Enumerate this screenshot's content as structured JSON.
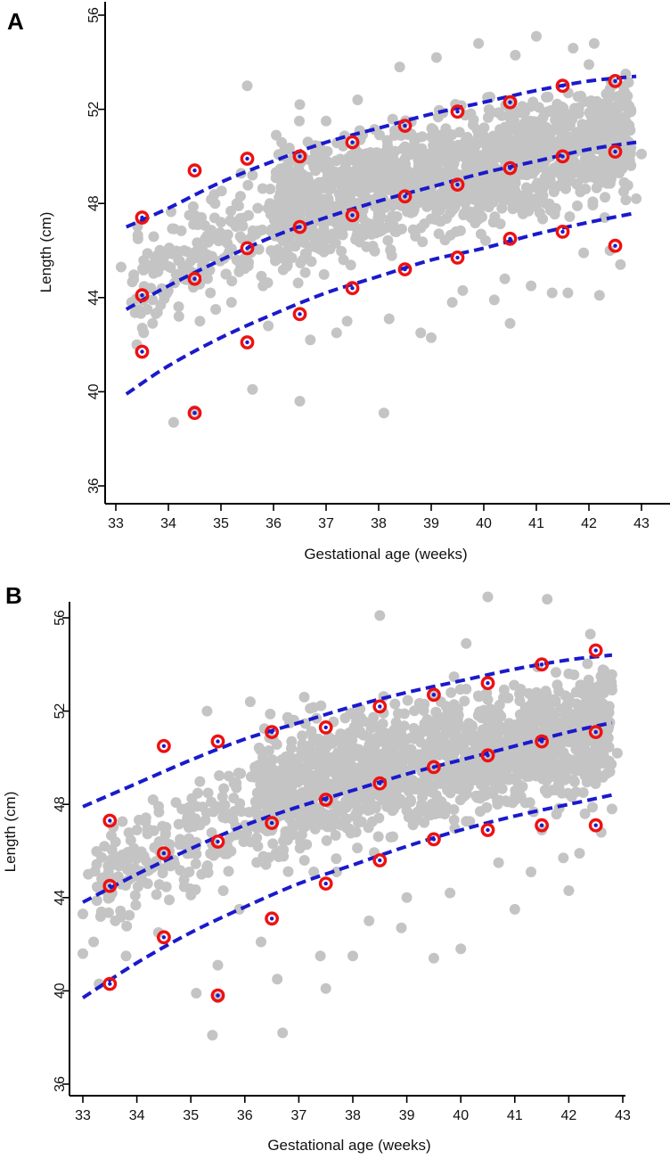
{
  "colors": {
    "scatter": "#c4c4c4",
    "curve": "#1a1acc",
    "marker": "#ee1111",
    "axis": "#000000"
  },
  "chart_data": [
    {
      "type": "scatter",
      "panel_label": "A",
      "xlabel": "Gestational age (weeks)",
      "ylabel": "Length (cm)",
      "xlim": [
        32.8,
        43.2
      ],
      "ylim": [
        35.5,
        57.5
      ],
      "xticks": [
        33,
        34,
        35,
        36,
        37,
        38,
        39,
        40,
        41,
        42,
        43
      ],
      "yticks": [
        36,
        40,
        44,
        48,
        52,
        56
      ],
      "scatter_description": "grey individual observations",
      "scatter_points": [
        [
          33.1,
          45.3
        ],
        [
          33.3,
          43.8
        ],
        [
          33.6,
          43.5
        ],
        [
          33.7,
          42.9
        ],
        [
          33.4,
          42.0
        ],
        [
          33.8,
          45.1
        ],
        [
          33.9,
          44.2
        ],
        [
          34.1,
          38.7
        ],
        [
          34.2,
          43.2
        ],
        [
          34.3,
          46.0
        ],
        [
          34.5,
          45.8
        ],
        [
          34.6,
          43.0
        ],
        [
          34.7,
          46.5
        ],
        [
          34.4,
          47.5
        ],
        [
          34.8,
          44.2
        ],
        [
          34.9,
          43.5
        ],
        [
          34.5,
          39.2
        ],
        [
          34.3,
          44.8
        ],
        [
          35.0,
          47.2
        ],
        [
          35.1,
          45.0
        ],
        [
          35.2,
          43.8
        ],
        [
          35.3,
          48.0
        ],
        [
          35.5,
          53.0
        ],
        [
          35.6,
          40.1
        ],
        [
          35.4,
          46.5
        ],
        [
          35.7,
          47.8
        ],
        [
          35.8,
          44.5
        ],
        [
          35.9,
          42.8
        ],
        [
          35.6,
          49.2
        ],
        [
          35.3,
          45.6
        ],
        [
          36.0,
          47.5
        ],
        [
          36.3,
          50.3
        ],
        [
          36.5,
          39.6
        ],
        [
          36.5,
          52.2
        ],
        [
          36.7,
          42.2
        ],
        [
          36.9,
          46.1
        ],
        [
          37.0,
          51.5
        ],
        [
          37.2,
          42.5
        ],
        [
          37.4,
          43.0
        ],
        [
          37.6,
          52.4
        ],
        [
          37.8,
          49.6
        ],
        [
          38.1,
          39.1
        ],
        [
          38.2,
          43.1
        ],
        [
          38.4,
          53.8
        ],
        [
          38.8,
          42.5
        ],
        [
          39.0,
          42.3
        ],
        [
          39.1,
          54.2
        ],
        [
          39.4,
          43.8
        ],
        [
          39.6,
          44.3
        ],
        [
          39.9,
          54.8
        ],
        [
          40.2,
          43.9
        ],
        [
          40.4,
          44.8
        ],
        [
          40.5,
          42.9
        ],
        [
          40.6,
          54.3
        ],
        [
          40.9,
          44.5
        ],
        [
          41.0,
          55.1
        ],
        [
          41.3,
          44.2
        ],
        [
          41.6,
          44.2
        ],
        [
          41.7,
          54.6
        ],
        [
          41.9,
          45.9
        ],
        [
          42.1,
          54.8
        ],
        [
          42.2,
          44.1
        ],
        [
          42.4,
          46.0
        ],
        [
          42.6,
          45.4
        ],
        [
          42.8,
          51.9
        ],
        [
          42.9,
          48.2
        ],
        [
          43.0,
          50.1
        ],
        [
          42.7,
          53.5
        ],
        [
          42.3,
          47.4
        ],
        [
          42.0,
          53.9
        ]
      ],
      "scatter_clusters": [
        {
          "x": [
            36.0,
            42.8
          ],
          "lo": [
            44.0,
            47.5
          ],
          "hi": [
            51.5,
            54.0
          ],
          "n": 1500,
          "seed": 11
        },
        {
          "x": [
            33.3,
            36.2
          ],
          "lo": [
            41.5,
            44.0
          ],
          "hi": [
            48.0,
            51.0
          ],
          "n": 160,
          "seed": 23
        }
      ],
      "curves": [
        {
          "name": "upper",
          "x": [
            33.2,
            34.0,
            35.0,
            36.0,
            37.0,
            38.0,
            39.0,
            40.0,
            41.0,
            42.0,
            42.9
          ],
          "y": [
            47.0,
            47.8,
            48.9,
            49.8,
            50.6,
            51.2,
            51.8,
            52.3,
            52.8,
            53.2,
            53.4
          ]
        },
        {
          "name": "middle",
          "x": [
            33.2,
            34.0,
            35.0,
            36.0,
            37.0,
            38.0,
            39.0,
            40.0,
            41.0,
            42.0,
            42.9
          ],
          "y": [
            43.5,
            44.5,
            45.6,
            46.6,
            47.4,
            48.1,
            48.7,
            49.3,
            49.8,
            50.3,
            50.6
          ]
        },
        {
          "name": "lower",
          "x": [
            33.2,
            34.0,
            35.0,
            36.0,
            37.0,
            38.0,
            39.0,
            40.0,
            41.0,
            42.0,
            42.9
          ],
          "y": [
            39.9,
            41.1,
            42.3,
            43.3,
            44.2,
            44.9,
            45.6,
            46.1,
            46.7,
            47.2,
            47.6
          ]
        }
      ],
      "markers": [
        {
          "x": 33.5,
          "y": 47.4
        },
        {
          "x": 33.5,
          "y": 44.1
        },
        {
          "x": 33.5,
          "y": 41.7
        },
        {
          "x": 34.5,
          "y": 49.4
        },
        {
          "x": 34.5,
          "y": 44.8
        },
        {
          "x": 34.5,
          "y": 39.1
        },
        {
          "x": 35.5,
          "y": 49.9
        },
        {
          "x": 35.5,
          "y": 46.1
        },
        {
          "x": 35.5,
          "y": 42.1
        },
        {
          "x": 36.5,
          "y": 50.0
        },
        {
          "x": 36.5,
          "y": 47.0
        },
        {
          "x": 36.5,
          "y": 43.3
        },
        {
          "x": 37.5,
          "y": 50.6
        },
        {
          "x": 37.5,
          "y": 47.5
        },
        {
          "x": 37.5,
          "y": 44.4
        },
        {
          "x": 38.5,
          "y": 51.3
        },
        {
          "x": 38.5,
          "y": 48.3
        },
        {
          "x": 38.5,
          "y": 45.2
        },
        {
          "x": 39.5,
          "y": 51.9
        },
        {
          "x": 39.5,
          "y": 48.8
        },
        {
          "x": 39.5,
          "y": 45.7
        },
        {
          "x": 40.5,
          "y": 52.3
        },
        {
          "x": 40.5,
          "y": 49.5
        },
        {
          "x": 40.5,
          "y": 46.5
        },
        {
          "x": 41.5,
          "y": 53.0
        },
        {
          "x": 41.5,
          "y": 50.0
        },
        {
          "x": 41.5,
          "y": 46.8
        },
        {
          "x": 42.5,
          "y": 53.2
        },
        {
          "x": 42.5,
          "y": 50.2
        },
        {
          "x": 42.5,
          "y": 46.2
        }
      ]
    },
    {
      "type": "scatter",
      "panel_label": "B",
      "xlabel": "Gestational age (weeks)",
      "ylabel": "Length (cm)",
      "xlim": [
        32.7,
        43.2
      ],
      "ylim": [
        35.3,
        57.6
      ],
      "xticks": [
        33,
        34,
        35,
        36,
        37,
        38,
        39,
        40,
        41,
        42,
        43
      ],
      "yticks": [
        36,
        40,
        44,
        48,
        52,
        56
      ],
      "scatter_description": "grey individual observations",
      "scatter_points": [
        [
          33.0,
          43.3
        ],
        [
          33.0,
          41.6
        ],
        [
          33.1,
          45.0
        ],
        [
          33.2,
          42.1
        ],
        [
          33.3,
          40.3
        ],
        [
          33.4,
          46.2
        ],
        [
          33.5,
          44.0
        ],
        [
          33.6,
          43.0
        ],
        [
          33.8,
          41.5
        ],
        [
          34.0,
          46.9
        ],
        [
          34.2,
          44.6
        ],
        [
          34.4,
          42.5
        ],
        [
          34.6,
          43.9
        ],
        [
          34.8,
          46.5
        ],
        [
          34.3,
          48.2
        ],
        [
          35.0,
          47.5
        ],
        [
          35.2,
          45.0
        ],
        [
          35.4,
          38.1
        ],
        [
          35.5,
          39.7
        ],
        [
          35.1,
          39.9
        ],
        [
          35.3,
          52.0
        ],
        [
          35.6,
          44.3
        ],
        [
          35.8,
          48.9
        ],
        [
          35.9,
          43.5
        ],
        [
          35.5,
          41.1
        ],
        [
          36.1,
          52.4
        ],
        [
          36.3,
          42.1
        ],
        [
          36.6,
          40.5
        ],
        [
          36.7,
          38.2
        ],
        [
          36.9,
          47.0
        ],
        [
          37.1,
          52.6
        ],
        [
          37.4,
          41.5
        ],
        [
          37.5,
          40.1
        ],
        [
          37.7,
          45.1
        ],
        [
          38.0,
          41.5
        ],
        [
          38.3,
          43.0
        ],
        [
          38.5,
          56.1
        ],
        [
          38.9,
          42.7
        ],
        [
          39.0,
          44.0
        ],
        [
          39.5,
          41.4
        ],
        [
          39.8,
          44.2
        ],
        [
          40.0,
          41.8
        ],
        [
          40.1,
          54.9
        ],
        [
          40.5,
          56.9
        ],
        [
          40.7,
          45.5
        ],
        [
          41.0,
          43.5
        ],
        [
          41.3,
          45.1
        ],
        [
          41.5,
          46.9
        ],
        [
          41.6,
          56.8
        ],
        [
          41.9,
          45.7
        ],
        [
          42.0,
          44.3
        ],
        [
          42.3,
          47.6
        ],
        [
          42.6,
          46.8
        ],
        [
          42.8,
          47.8
        ],
        [
          42.9,
          50.2
        ],
        [
          42.8,
          52.9
        ],
        [
          42.4,
          55.3
        ],
        [
          42.0,
          53.6
        ],
        [
          42.6,
          49.2
        ],
        [
          42.2,
          45.9
        ]
      ],
      "scatter_clusters": [
        {
          "x": [
            36.2,
            42.8
          ],
          "lo": [
            44.3,
            47.8
          ],
          "hi": [
            52.2,
            55.0
          ],
          "n": 1500,
          "seed": 37
        },
        {
          "x": [
            33.2,
            36.2
          ],
          "lo": [
            41.5,
            44.5
          ],
          "hi": [
            48.0,
            51.5
          ],
          "n": 200,
          "seed": 53
        }
      ],
      "curves": [
        {
          "name": "upper",
          "x": [
            33.0,
            34.0,
            35.0,
            36.0,
            37.0,
            38.0,
            39.0,
            40.0,
            41.0,
            42.0,
            42.8
          ],
          "y": [
            47.9,
            48.9,
            49.9,
            50.8,
            51.5,
            52.2,
            52.8,
            53.3,
            53.8,
            54.2,
            54.4
          ]
        },
        {
          "name": "middle",
          "x": [
            33.0,
            34.0,
            35.0,
            36.0,
            37.0,
            38.0,
            39.0,
            40.0,
            41.0,
            42.0,
            42.8
          ],
          "y": [
            43.8,
            45.0,
            46.1,
            47.1,
            47.9,
            48.6,
            49.3,
            49.9,
            50.5,
            51.1,
            51.5
          ]
        },
        {
          "name": "lower",
          "x": [
            33.0,
            34.0,
            35.0,
            36.0,
            37.0,
            38.0,
            39.0,
            40.0,
            41.0,
            42.0,
            42.8
          ],
          "y": [
            39.7,
            41.2,
            42.5,
            43.6,
            44.6,
            45.4,
            46.2,
            46.9,
            47.5,
            48.0,
            48.4
          ]
        }
      ],
      "markers": [
        {
          "x": 33.5,
          "y": 47.3
        },
        {
          "x": 33.5,
          "y": 44.5
        },
        {
          "x": 33.5,
          "y": 40.3
        },
        {
          "x": 34.5,
          "y": 50.5
        },
        {
          "x": 34.5,
          "y": 45.9
        },
        {
          "x": 34.5,
          "y": 42.3
        },
        {
          "x": 35.5,
          "y": 50.7
        },
        {
          "x": 35.5,
          "y": 46.4
        },
        {
          "x": 35.5,
          "y": 39.8
        },
        {
          "x": 36.5,
          "y": 51.1
        },
        {
          "x": 36.5,
          "y": 47.2
        },
        {
          "x": 36.5,
          "y": 43.1
        },
        {
          "x": 37.5,
          "y": 51.3
        },
        {
          "x": 37.5,
          "y": 48.2
        },
        {
          "x": 37.5,
          "y": 44.6
        },
        {
          "x": 38.5,
          "y": 52.2
        },
        {
          "x": 38.5,
          "y": 48.9
        },
        {
          "x": 38.5,
          "y": 45.6
        },
        {
          "x": 39.5,
          "y": 52.7
        },
        {
          "x": 39.5,
          "y": 49.6
        },
        {
          "x": 39.5,
          "y": 46.5
        },
        {
          "x": 40.5,
          "y": 53.2
        },
        {
          "x": 40.5,
          "y": 50.1
        },
        {
          "x": 40.5,
          "y": 46.9
        },
        {
          "x": 41.5,
          "y": 54.0
        },
        {
          "x": 41.5,
          "y": 50.7
        },
        {
          "x": 41.5,
          "y": 47.1
        },
        {
          "x": 42.5,
          "y": 54.6
        },
        {
          "x": 42.5,
          "y": 51.1
        },
        {
          "x": 42.5,
          "y": 47.1
        }
      ]
    }
  ]
}
